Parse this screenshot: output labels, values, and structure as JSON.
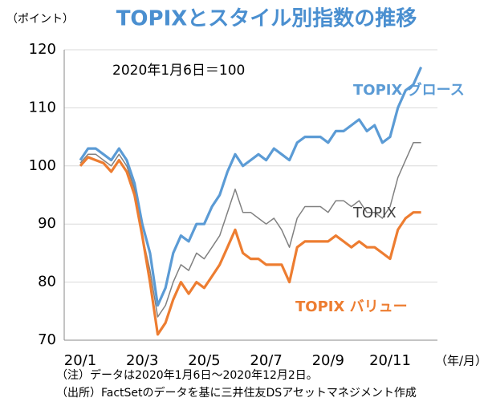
{
  "chart_data": {
    "type": "line",
    "title": "TOPIXとスタイル別指数の推移",
    "y_unit_label": "（ポイント）",
    "x_unit_label": "（年/月）",
    "base_note": "2020年1月6日＝100",
    "notes": [
      "（注）データは2020年1月6日～2020年12月2日。",
      "（出所）FactSetのデータを基に三井住友DSアセットマネジメント作成"
    ],
    "categories": [
      "20/1",
      null,
      null,
      null,
      null,
      null,
      null,
      null,
      "20/3",
      null,
      null,
      null,
      null,
      null,
      null,
      null,
      "20/5",
      null,
      null,
      null,
      null,
      null,
      null,
      null,
      "20/7",
      null,
      null,
      null,
      null,
      null,
      null,
      null,
      "20/9",
      null,
      null,
      null,
      null,
      null,
      null,
      null,
      "20/11",
      null,
      null,
      null,
      null
    ],
    "series": [
      {
        "name": "TOPIX グロース",
        "color": "#5b9bd5",
        "values": [
          101,
          103,
          103,
          102,
          101,
          103,
          101,
          97,
          90,
          85,
          76,
          79,
          85,
          88,
          87,
          90,
          90,
          93,
          95,
          99,
          102,
          100,
          101,
          102,
          101,
          103,
          102,
          101,
          104,
          105,
          105,
          105,
          104,
          106,
          106,
          107,
          108,
          106,
          107,
          104,
          105,
          110,
          113,
          114,
          117
        ]
      },
      {
        "name": "TOPIX",
        "color": "#808080",
        "values": [
          100.5,
          102,
          102,
          101,
          100,
          102,
          100,
          96,
          88,
          82,
          74,
          76,
          80,
          83,
          82,
          85,
          84,
          86,
          88,
          92,
          96,
          92,
          92,
          91,
          90,
          91,
          89,
          86,
          91,
          93,
          93,
          93,
          92,
          94,
          94,
          93,
          94,
          92,
          92,
          91,
          93,
          98,
          101,
          104,
          104
        ]
      },
      {
        "name": "TOPIX バリュー",
        "color": "#ed7d31",
        "values": [
          100,
          101.5,
          101,
          100.5,
          99,
          101,
          99,
          95,
          88,
          80,
          71,
          73,
          77,
          80,
          78,
          80,
          79,
          81,
          83,
          86,
          89,
          85,
          84,
          84,
          83,
          83,
          83,
          80,
          86,
          87,
          87,
          87,
          87,
          88,
          87,
          86,
          87,
          86,
          86,
          85,
          84,
          89,
          91,
          92,
          92
        ]
      }
    ],
    "ylim": [
      70,
      120
    ],
    "yticks": [
      70,
      80,
      90,
      100,
      110,
      120
    ],
    "grid": true
  }
}
